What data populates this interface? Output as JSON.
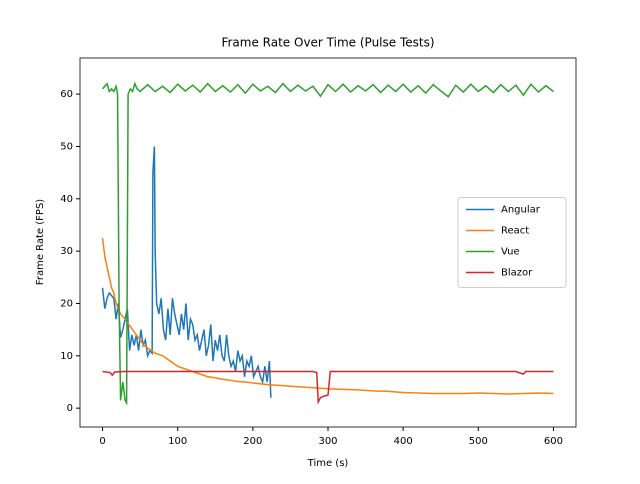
{
  "chart_data": {
    "type": "line",
    "title": "Frame Rate Over Time (Pulse Tests)",
    "xlabel": "Time (s)",
    "ylabel": "Frame Rate (FPS)",
    "xlim": [
      -30,
      630
    ],
    "ylim": [
      -3.6,
      66.9
    ],
    "xticks": [
      0,
      100,
      200,
      300,
      400,
      500,
      600
    ],
    "yticks": [
      0,
      10,
      20,
      30,
      40,
      50,
      60
    ],
    "legend": "center right",
    "series": [
      {
        "name": "Angular",
        "color": "#1f77b4",
        "x": [
          0,
          3,
          6,
          9,
          12,
          15,
          18,
          21,
          24,
          27,
          30,
          33,
          36,
          39,
          42,
          45,
          48,
          51,
          54,
          57,
          60,
          63,
          66,
          67,
          69,
          70,
          72,
          75,
          78,
          81,
          84,
          87,
          90,
          93,
          96,
          99,
          102,
          105,
          108,
          111,
          114,
          117,
          120,
          123,
          126,
          129,
          132,
          135,
          138,
          141,
          144,
          147,
          150,
          153,
          156,
          159,
          162,
          165,
          168,
          171,
          174,
          177,
          180,
          183,
          186,
          189,
          192,
          195,
          198,
          201,
          204,
          207,
          210,
          213,
          216,
          219,
          222,
          224
        ],
        "values": [
          23,
          19,
          21,
          22,
          21.5,
          21,
          17,
          20,
          13.5,
          15,
          17,
          19,
          11,
          14,
          12,
          14,
          11,
          15,
          12,
          13,
          10,
          11,
          10.5,
          45,
          50,
          30,
          20,
          18,
          21,
          15,
          13,
          19,
          14,
          21,
          18,
          16,
          14,
          18,
          15,
          20,
          13,
          17,
          16,
          13,
          14,
          11,
          13,
          15,
          10,
          12,
          16,
          9,
          13,
          11,
          14,
          10,
          9,
          14,
          10,
          8,
          9,
          7,
          11,
          9,
          10,
          6,
          9,
          8,
          10,
          6,
          7,
          8,
          6,
          5,
          8,
          5,
          9,
          2
        ]
      },
      {
        "name": "React",
        "color": "#ff7f0e",
        "x": [
          0,
          3,
          6,
          9,
          12,
          15,
          18,
          21,
          24,
          27,
          30,
          35,
          40,
          45,
          50,
          55,
          60,
          65,
          70,
          80,
          90,
          100,
          110,
          120,
          130,
          140,
          150,
          160,
          170,
          180,
          190,
          200,
          220,
          240,
          260,
          280,
          300,
          320,
          340,
          360,
          380,
          400,
          420,
          440,
          460,
          480,
          500,
          520,
          540,
          560,
          580,
          600
        ],
        "values": [
          32.5,
          29,
          27,
          25,
          23,
          22,
          20,
          19,
          18,
          17.5,
          17,
          16,
          15,
          14,
          13,
          12,
          11.5,
          11,
          10.5,
          10,
          9,
          8,
          7.5,
          7,
          6.5,
          6,
          5.8,
          5.5,
          5.3,
          5.1,
          5,
          4.8,
          4.5,
          4.3,
          4.1,
          3.9,
          3.7,
          3.6,
          3.5,
          3.3,
          3.2,
          3,
          2.9,
          2.8,
          2.8,
          2.8,
          2.9,
          2.8,
          2.7,
          2.8,
          2.9,
          2.8
        ]
      },
      {
        "name": "Vue",
        "color": "#2ca02c",
        "x": [
          0,
          3,
          6,
          9,
          12,
          15,
          18,
          20,
          22,
          24,
          27,
          30,
          32,
          34,
          37,
          40,
          43,
          46,
          50,
          60,
          70,
          80,
          90,
          100,
          110,
          120,
          130,
          140,
          150,
          160,
          170,
          180,
          190,
          200,
          210,
          220,
          230,
          240,
          250,
          260,
          270,
          280,
          290,
          300,
          310,
          320,
          330,
          340,
          350,
          360,
          370,
          380,
          390,
          400,
          410,
          420,
          430,
          440,
          450,
          460,
          470,
          480,
          490,
          500,
          510,
          520,
          530,
          540,
          550,
          560,
          570,
          580,
          590,
          600
        ],
        "values": [
          61,
          61.5,
          62,
          60.5,
          61,
          60.5,
          61.5,
          60,
          20,
          1.5,
          5,
          1.5,
          1,
          60,
          61,
          60.5,
          62,
          61,
          60.5,
          61.8,
          60.5,
          61.5,
          60.3,
          61.9,
          60.6,
          61.7,
          60.4,
          62,
          60.5,
          61.6,
          60.4,
          61.8,
          60.2,
          61.9,
          60.6,
          61.5,
          60.3,
          62,
          60.5,
          61.7,
          60.6,
          61.5,
          59.6,
          61.8,
          60.5,
          61.9,
          60.4,
          61.6,
          60.6,
          61.8,
          60.3,
          61.7,
          60.5,
          61.9,
          60.4,
          61.6,
          60.2,
          61.8,
          60.6,
          59.5,
          61.7,
          60.4,
          61.9,
          60.5,
          61.6,
          60.3,
          61.8,
          60.5,
          61.7,
          59.8,
          61.9,
          60.4,
          61.6,
          60.5
        ]
      },
      {
        "name": "Blazor",
        "color": "#d62728",
        "x": [
          0,
          10,
          13,
          16,
          30,
          60,
          100,
          150,
          200,
          250,
          280,
          285,
          287,
          290,
          295,
          300,
          303,
          310,
          350,
          400,
          450,
          500,
          550,
          560,
          563,
          580,
          600
        ],
        "values": [
          7,
          6.8,
          6.3,
          6.9,
          7,
          7,
          7,
          7,
          7,
          7,
          7,
          6.8,
          1.2,
          2,
          2.3,
          2.5,
          7,
          7,
          7,
          7,
          7,
          7,
          7,
          6.5,
          7,
          7,
          7
        ]
      }
    ]
  }
}
